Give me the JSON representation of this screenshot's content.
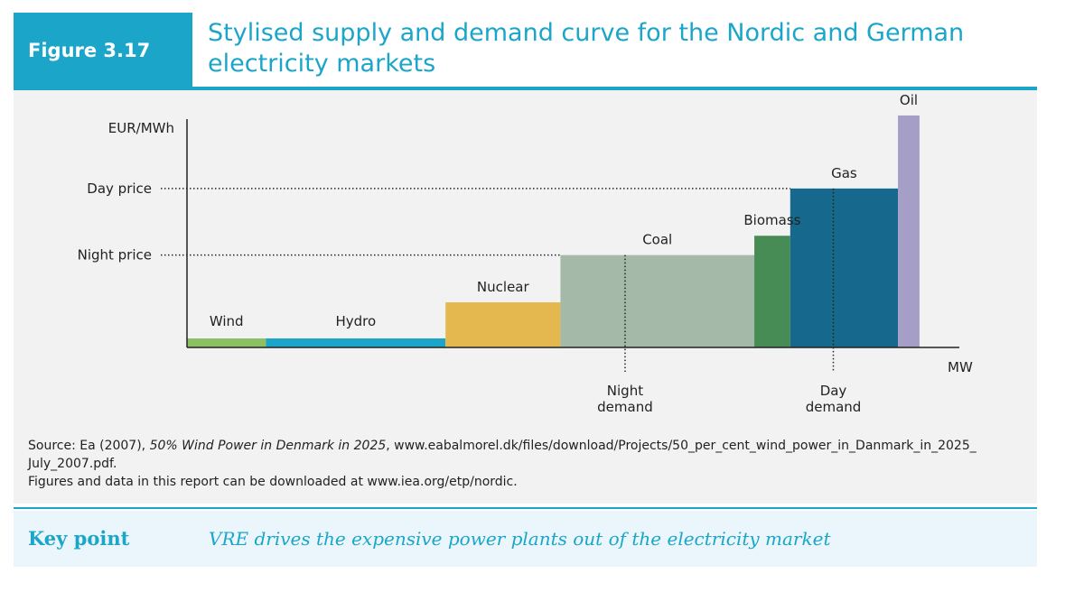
{
  "figure": {
    "label": "Figure 3.17",
    "title": "Stylised supply and demand curve for the Nordic and German electricity markets"
  },
  "chart_data": {
    "type": "bar",
    "subtype": "merit-order",
    "ylabel": "EUR/MWh",
    "xlabel": "MW",
    "price_levels": [
      {
        "name": "Day price",
        "value": 0.74
      },
      {
        "name": "Night price",
        "value": 0.43
      }
    ],
    "demand_levels": [
      {
        "name": "Night demand",
        "value": 0.61
      },
      {
        "name": "Day demand",
        "value": 0.9
      }
    ],
    "xlim": [
      0,
      1
    ],
    "ylim": [
      0,
      1
    ],
    "series": [
      {
        "name": "Wind",
        "start": 0.0,
        "end": 0.11,
        "price": 0.05,
        "color": "#8dc063"
      },
      {
        "name": "Hydro",
        "start": 0.11,
        "end": 0.36,
        "price": 0.05,
        "color": "#1ba6c9"
      },
      {
        "name": "Nuclear",
        "start": 0.36,
        "end": 0.52,
        "price": 0.21,
        "color": "#e5b84f"
      },
      {
        "name": "Coal",
        "start": 0.52,
        "end": 0.79,
        "price": 0.43,
        "color": "#a4b9a7"
      },
      {
        "name": "Biomass",
        "start": 0.79,
        "end": 0.84,
        "price": 0.52,
        "color": "#488c55"
      },
      {
        "name": "Gas",
        "start": 0.84,
        "end": 0.99,
        "price": 0.74,
        "color": "#16688c"
      },
      {
        "name": "Oil",
        "start": 0.99,
        "end": 1.02,
        "price": 1.08,
        "color": "#a59fc8"
      }
    ],
    "grid": false,
    "legend": "none"
  },
  "source": {
    "line1_prefix": "Source: Ea (2007), ",
    "line1_italic": "50% Wind Power in Denmark in 2025",
    "line1_suffix": ", www.eabalmorel.dk/files/download/Projects/50_per_cent_wind_power_in_Danmark_in_2025_ July_2007.pdf.",
    "line2": "Figures and data in this report can be downloaded at www.iea.org/etp/nordic."
  },
  "key_point": {
    "label": "Key point",
    "text": "VRE drives the expensive power plants out of the electricity market"
  }
}
